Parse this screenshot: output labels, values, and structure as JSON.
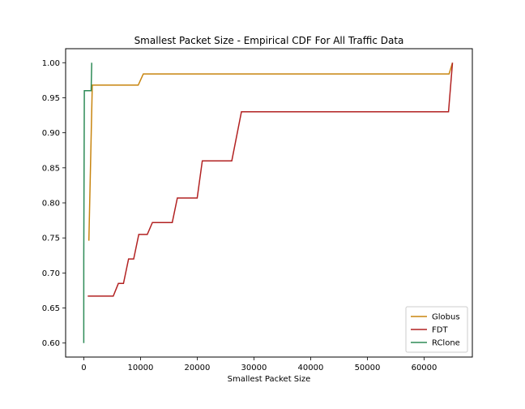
{
  "chart_data": {
    "type": "line",
    "title": "Smallest Packet Size - Empirical CDF For All Traffic Data",
    "xlabel": "Smallest Packet Size",
    "ylabel": "",
    "xlim": [
      -3200,
      68500
    ],
    "ylim": [
      0.58,
      1.02
    ],
    "x_ticks": [
      0,
      10000,
      20000,
      30000,
      40000,
      50000,
      60000
    ],
    "y_ticks": [
      0.6,
      0.65,
      0.7,
      0.75,
      0.8,
      0.85,
      0.9,
      0.95,
      1.0
    ],
    "y_tick_decimals": 2,
    "grid": false,
    "legend_position": "lower-right",
    "series": [
      {
        "name": "Globus",
        "color": "#c8850f",
        "points": [
          [
            900,
            0.746
          ],
          [
            1500,
            0.968
          ],
          [
            9600,
            0.968
          ],
          [
            10500,
            0.984
          ],
          [
            64400,
            0.984
          ],
          [
            65000,
            1.0
          ]
        ]
      },
      {
        "name": "FDT",
        "color": "#b22222",
        "points": [
          [
            700,
            0.667
          ],
          [
            5200,
            0.667
          ],
          [
            6100,
            0.685
          ],
          [
            7000,
            0.685
          ],
          [
            7900,
            0.72
          ],
          [
            8800,
            0.72
          ],
          [
            9700,
            0.755
          ],
          [
            11200,
            0.755
          ],
          [
            12100,
            0.772
          ],
          [
            15600,
            0.772
          ],
          [
            16500,
            0.807
          ],
          [
            20000,
            0.807
          ],
          [
            20900,
            0.86
          ],
          [
            26100,
            0.86
          ],
          [
            27800,
            0.93
          ],
          [
            64300,
            0.93
          ],
          [
            65000,
            1.0
          ]
        ]
      },
      {
        "name": "RClone",
        "color": "#2e8b57",
        "points": [
          [
            0,
            0.6
          ],
          [
            0,
            0.72
          ],
          [
            100,
            0.96
          ],
          [
            1300,
            0.96
          ],
          [
            1400,
            1.0
          ]
        ]
      }
    ]
  }
}
